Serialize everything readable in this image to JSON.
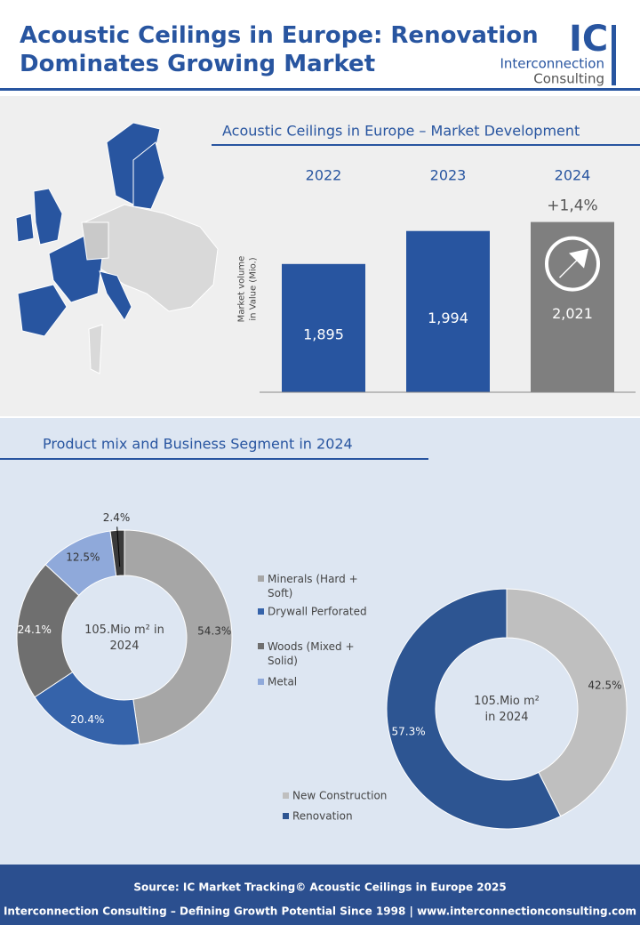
{
  "header": {
    "title": "Acoustic Ceilings in Europe: Renovation Dominates Growing Market",
    "logo_mark": "IC",
    "logo_line1": "Interconnection",
    "logo_line2": "Consulting"
  },
  "section_title": "Product mix and Business Segment in 2024",
  "chart_data": [
    {
      "type": "bar",
      "title": "Acoustic Ceilings in Europe – Market Development",
      "y_label": "Market volume in Value (Mio.)",
      "categories": [
        "2022",
        "2023",
        "2024"
      ],
      "values": [
        1895,
        1994,
        2021
      ],
      "value_labels": [
        "1,895",
        "1,994",
        "2,021"
      ],
      "colors": [
        "#2855a0",
        "#2855a0",
        "#7f7f7f"
      ],
      "annotation": "+1,4%",
      "ylim": [
        1510,
        2060
      ]
    },
    {
      "type": "pie",
      "center_label": "105.Mio m² in 2024",
      "categories": [
        "Minerals (Hard + Soft)",
        "Drywall Perforated",
        "Woods (Mixed + Solid)",
        "Metal",
        null
      ],
      "values": [
        54.3,
        20.4,
        24.1,
        12.5,
        2.4
      ],
      "value_labels": [
        "54.3%",
        "20.4%",
        "24.1%",
        "12.5%",
        "2.4%"
      ],
      "colors": [
        "#a6a6a6",
        "#3563aa",
        "#6f6f6f",
        "#8fa9da",
        "#3a3a3a"
      ]
    },
    {
      "type": "pie",
      "center_label": "105.Mio m² in 2024",
      "categories": [
        "New Construction",
        "Renovation"
      ],
      "values": [
        42.5,
        57.3
      ],
      "value_labels": [
        "42.5%",
        "57.3%"
      ],
      "colors": [
        "#bfbfbf",
        "#2d5592"
      ]
    }
  ],
  "footer": {
    "source": "Source: IC Market Tracking© Acoustic Ceilings in Europe 2025",
    "tagline": "Interconnection Consulting – Defining Growth Potential Since 1998 | www.interconnectionconsulting.com"
  }
}
